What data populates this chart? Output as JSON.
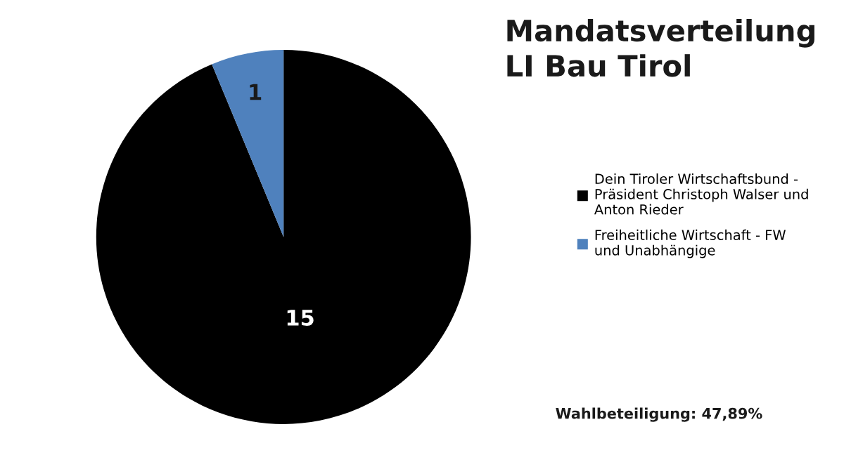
{
  "chart_data": {
    "type": "pie",
    "title": "Mandatsverteilung\nLI Bau Tirol",
    "categories": [
      "Dein Tiroler Wirtschaftsbund - Präsident Christoph Walser und Anton Rieder",
      "Freiheitliche Wirtschaft - FW und Unabhängige"
    ],
    "values": [
      15,
      1
    ],
    "colors": [
      "#000000",
      "#4f81bd"
    ],
    "data_labels": true,
    "legend": "right",
    "annotations": [
      "Wahlbeteiligung: 47,89%"
    ]
  }
}
